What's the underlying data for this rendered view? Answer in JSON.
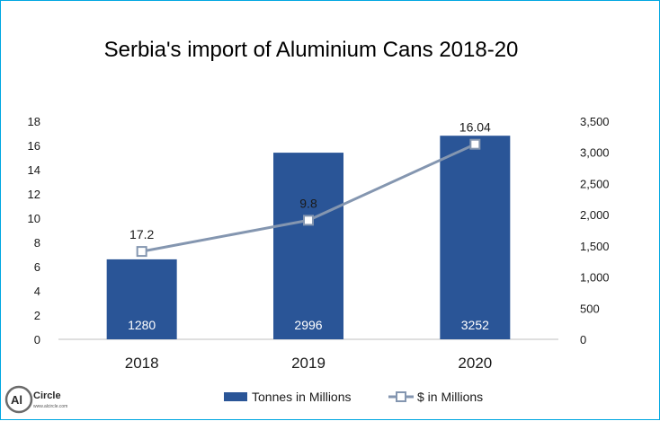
{
  "chart_data": {
    "type": "bar",
    "title": "Serbia's import of Aluminium Cans 2018-20",
    "categories": [
      "2018",
      "2019",
      "2020"
    ],
    "series": [
      {
        "name": "Tonnes in Millions",
        "type": "bar",
        "axis": "left",
        "values": [
          6.6,
          15.4,
          16.8
        ],
        "labels": [
          "1280",
          "2996",
          "3252"
        ]
      },
      {
        "name": "$ in Millions",
        "type": "line",
        "axis": "right",
        "values": [
          1410,
          1910,
          3130
        ],
        "labels": [
          "17.2",
          "9.8",
          "16.04"
        ]
      }
    ],
    "y_left": {
      "ylim": [
        0,
        18
      ],
      "ticks": [
        "0",
        "2",
        "4",
        "6",
        "8",
        "10",
        "12",
        "14",
        "16",
        "18"
      ]
    },
    "y_right": {
      "ylim": [
        0,
        3500
      ],
      "ticks": [
        "0",
        "500",
        "1,000",
        "1,500",
        "2,000",
        "2,500",
        "3,000",
        "3,500"
      ]
    },
    "xlabel": "",
    "ylabel": "",
    "grid": false,
    "legend_position": "bottom",
    "colors": {
      "bar": "#2a5597",
      "line": "#8496b0",
      "marker_fill": "#ffffff",
      "marker_stroke": "#8496b0",
      "frame": "#00a7e1"
    }
  },
  "logo": {
    "text": "AlCircle",
    "mark": "Al",
    "word": "Circle",
    "sub": "www.alcircle.com"
  }
}
